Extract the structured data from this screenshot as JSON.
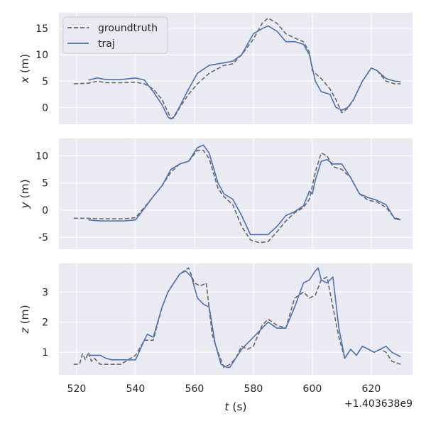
{
  "chart_data": {
    "type": "line",
    "x_offset_label": "+1.403638e9",
    "xlabel": "t (s)",
    "xticks": [
      520,
      540,
      560,
      580,
      600,
      620
    ],
    "xlim": [
      514,
      634
    ],
    "legend": {
      "placement": "upper-left",
      "entries": [
        "groundtruth",
        "traj"
      ]
    },
    "series_styles": [
      {
        "name": "groundtruth",
        "color": "#666666",
        "dash": "dashed"
      },
      {
        "name": "traj",
        "color": "#4C72B0",
        "dash": "solid"
      }
    ],
    "subplots": [
      {
        "ylabel": "x (m)",
        "ylim": [
          -3.2,
          18.0
        ],
        "yticks": [
          0,
          5,
          10,
          15
        ],
        "series": [
          {
            "name": "groundtruth",
            "x": [
              519,
              524,
              527,
              530,
              535,
              540,
              543,
              546,
              549,
              551,
              552,
              553,
              555,
              558,
              561,
              565,
              570,
              573,
              576,
              580,
              583,
              585,
              588,
              591,
              594,
              597,
              599,
              600,
              603,
              606,
              608,
              610,
              612,
              614,
              617,
              620,
              622,
              625,
              628,
              630
            ],
            "y": [
              4.5,
              4.6,
              5.0,
              4.7,
              4.7,
              4.8,
              4.5,
              3.5,
              1.5,
              -0.9,
              -2.1,
              -2.0,
              0.0,
              2.5,
              4.5,
              6.5,
              8.0,
              8.3,
              10.0,
              13.0,
              16.0,
              17.0,
              16.0,
              14.0,
              13.2,
              12.5,
              10.5,
              7.0,
              5.5,
              3.5,
              1.5,
              -1.0,
              -0.2,
              1.5,
              5.0,
              7.5,
              7.0,
              5.0,
              4.5,
              4.5
            ]
          },
          {
            "name": "traj",
            "x": [
              524,
              527,
              530,
              535,
              540,
              543,
              546,
              549,
              551,
              552,
              553,
              555,
              558,
              561,
              565,
              570,
              573,
              576,
              580,
              583,
              585,
              588,
              591,
              594,
              597,
              599,
              601,
              603,
              606,
              608,
              610,
              612,
              614,
              617,
              620,
              622,
              625,
              628,
              630
            ],
            "y": [
              5.2,
              5.6,
              5.3,
              5.3,
              5.6,
              5.2,
              3.0,
              0.5,
              -1.8,
              -2.2,
              -1.8,
              0.2,
              3.5,
              6.5,
              8.0,
              8.5,
              8.8,
              10.0,
              14.0,
              15.0,
              15.5,
              14.5,
              12.5,
              12.5,
              12.0,
              10.0,
              5.0,
              3.0,
              2.5,
              0.0,
              -0.5,
              0.0,
              1.5,
              5.0,
              7.5,
              7.0,
              5.5,
              5.0,
              4.9
            ]
          }
        ]
      },
      {
        "ylabel": "y (m)",
        "ylim": [
          -7.2,
          13.2
        ],
        "yticks": [
          -5,
          0,
          5,
          10
        ],
        "series": [
          {
            "name": "groundtruth",
            "x": [
              519,
              524,
              528,
              532,
              536,
              540,
              543,
              546,
              549,
              552,
              555,
              558,
              561,
              563,
              565,
              568,
              570,
              573,
              576,
              579,
              582,
              585,
              588,
              591,
              594,
              597,
              599,
              601,
              603,
              605,
              607,
              610,
              613,
              616,
              619,
              622,
              625,
              628,
              630
            ],
            "y": [
              -1.5,
              -1.5,
              -1.6,
              -1.6,
              -1.6,
              -1.4,
              0.5,
              2.5,
              4.5,
              7.0,
              8.5,
              9.0,
              11.0,
              11.0,
              9.5,
              4.0,
              2.5,
              1.0,
              -3.0,
              -5.5,
              -6.0,
              -5.8,
              -4.0,
              -2.0,
              -0.5,
              0.5,
              2.0,
              7.0,
              10.5,
              10.0,
              8.0,
              7.5,
              6.0,
              3.0,
              1.8,
              1.5,
              0.5,
              -1.5,
              -1.6
            ]
          },
          {
            "name": "traj",
            "x": [
              524,
              528,
              532,
              536,
              540,
              543,
              546,
              549,
              552,
              555,
              558,
              561,
              563,
              565,
              568,
              570,
              573,
              576,
              579,
              582,
              585,
              588,
              591,
              594,
              597,
              599,
              600,
              601,
              603,
              605,
              607,
              610,
              613,
              616,
              619,
              622,
              625,
              628,
              630
            ],
            "y": [
              -1.8,
              -2.0,
              -2.0,
              -2.0,
              -1.8,
              0.3,
              2.5,
              4.5,
              7.5,
              8.5,
              9.0,
              11.5,
              12.0,
              10.5,
              5.0,
              3.0,
              2.0,
              -1.0,
              -4.5,
              -4.5,
              -4.5,
              -3.0,
              -1.0,
              -0.3,
              0.8,
              3.5,
              3.0,
              5.5,
              9.0,
              9.3,
              8.5,
              8.5,
              6.0,
              3.0,
              2.3,
              1.8,
              1.0,
              -1.6,
              -1.8
            ]
          }
        ]
      },
      {
        "ylabel": "z (m)",
        "ylim": [
          0.25,
          3.95
        ],
        "yticks": [
          1,
          2,
          3
        ],
        "series": [
          {
            "name": "groundtruth",
            "x": [
              519,
              521,
              522,
              523,
              524,
              525,
              526,
              528,
              530,
              532,
              535,
              540,
              543,
              546,
              549,
              551,
              553,
              555,
              558,
              560,
              562,
              564,
              566,
              568,
              570,
              572,
              574,
              576,
              578,
              580,
              583,
              585,
              588,
              591,
              594,
              597,
              599,
              601,
              603,
              605,
              607,
              609,
              611,
              613,
              615,
              617,
              619,
              621,
              623,
              625,
              627,
              630
            ],
            "y": [
              0.6,
              0.6,
              0.95,
              0.75,
              1.0,
              0.7,
              0.8,
              0.6,
              0.6,
              0.6,
              0.6,
              0.9,
              1.4,
              1.4,
              2.5,
              3.0,
              3.3,
              3.6,
              3.8,
              3.3,
              3.2,
              3.3,
              1.6,
              1.0,
              0.5,
              0.6,
              0.8,
              1.2,
              1.1,
              1.2,
              1.9,
              2.1,
              1.9,
              1.8,
              2.8,
              3.0,
              2.8,
              2.9,
              3.4,
              3.5,
              2.5,
              1.5,
              0.8,
              1.1,
              0.9,
              1.2,
              1.1,
              1.0,
              1.1,
              1.0,
              0.7,
              0.6
            ]
          },
          {
            "name": "traj",
            "x": [
              524,
              526,
              528,
              530,
              532,
              535,
              540,
              543,
              544,
              546,
              549,
              551,
              553,
              555,
              557,
              559,
              561,
              563,
              565,
              567,
              569,
              571,
              572,
              574,
              576,
              578,
              580,
              583,
              585,
              588,
              591,
              594,
              597,
              599,
              601,
              602,
              603,
              605,
              607,
              609,
              611,
              613,
              615,
              617,
              619,
              621,
              623,
              625,
              627,
              630
            ],
            "y": [
              0.9,
              0.9,
              0.9,
              0.8,
              0.75,
              0.75,
              0.75,
              1.4,
              1.6,
              1.5,
              2.5,
              3.0,
              3.3,
              3.6,
              3.7,
              3.5,
              2.8,
              2.6,
              2.5,
              1.3,
              0.6,
              0.5,
              0.5,
              0.8,
              1.1,
              1.3,
              1.5,
              1.8,
              2.0,
              1.8,
              1.8,
              2.5,
              3.3,
              3.4,
              3.7,
              3.8,
              3.4,
              3.3,
              3.5,
              1.8,
              0.8,
              1.1,
              0.9,
              1.2,
              1.1,
              1.0,
              1.1,
              1.2,
              1.0,
              0.85
            ]
          }
        ]
      }
    ]
  }
}
